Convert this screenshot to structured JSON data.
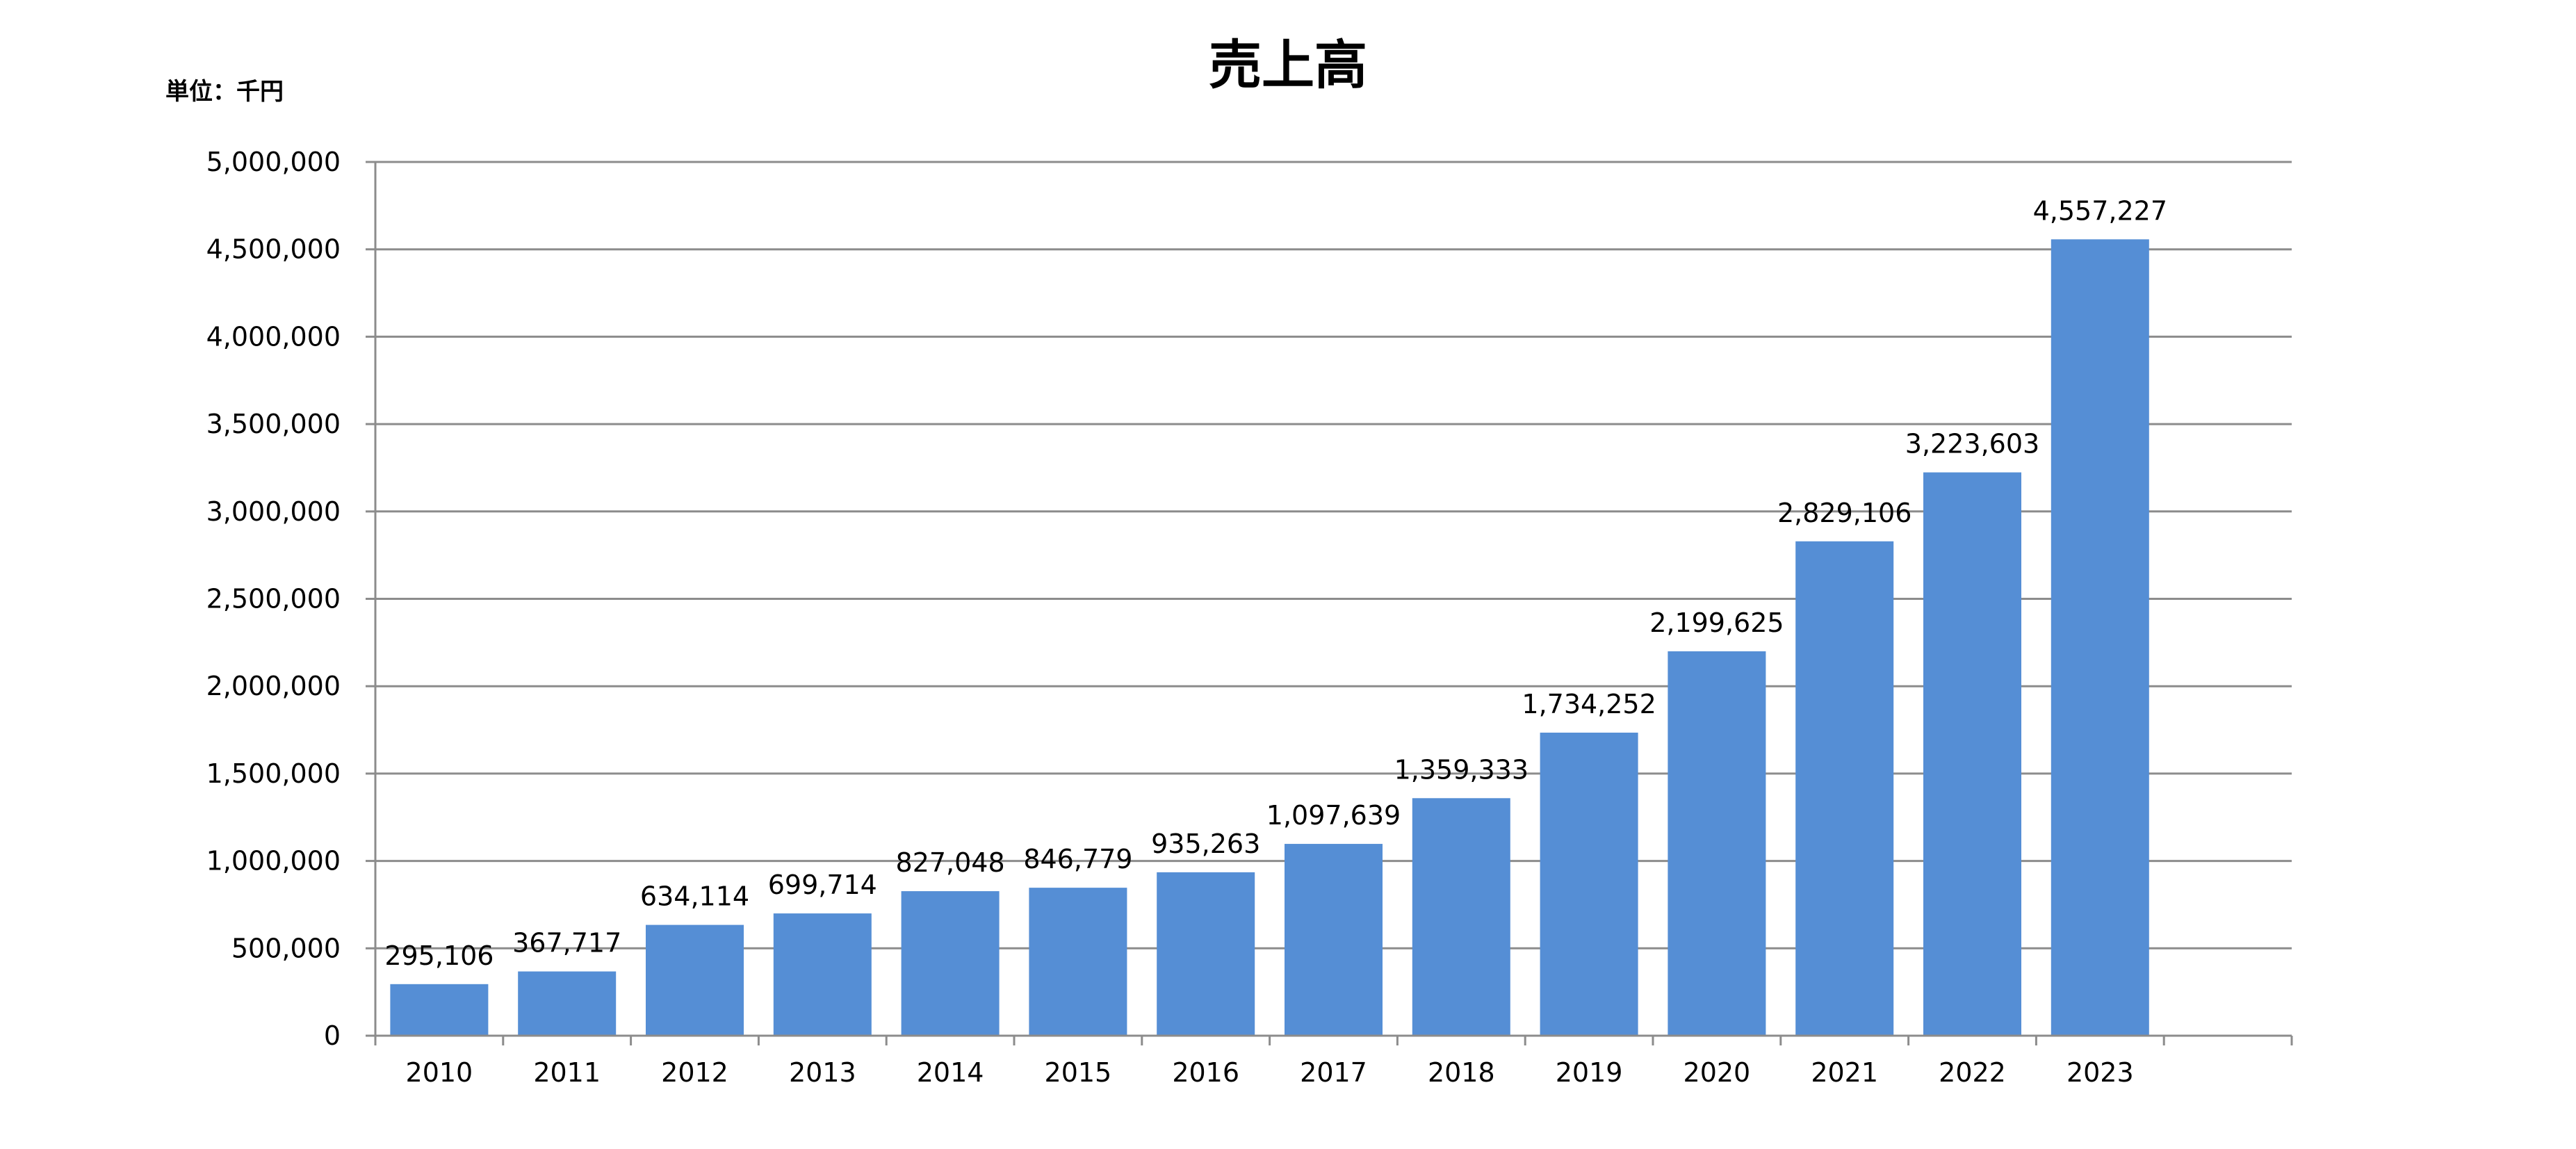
{
  "chart_data": {
    "type": "bar",
    "title": "売上高",
    "unit_label": "単位：千円",
    "categories": [
      "2010",
      "2011",
      "2012",
      "2013",
      "2014",
      "2015",
      "2016",
      "2017",
      "2018",
      "2019",
      "2020",
      "2021",
      "2022",
      "2023"
    ],
    "values": [
      295106,
      367717,
      634114,
      699714,
      827048,
      846779,
      935263,
      1097639,
      1359333,
      1734252,
      2199625,
      2829106,
      3223603,
      4557227
    ],
    "value_labels": [
      "295,106",
      "367,717",
      "634,114",
      "699,714",
      "827,048",
      "846,779",
      "935,263",
      "1,097,639",
      "1,359,333",
      "1,734,252",
      "2,199,625",
      "2,829,106",
      "3,223,603",
      "4,557,227"
    ],
    "y_ticks": [
      0,
      500000,
      1000000,
      1500000,
      2000000,
      2500000,
      3000000,
      3500000,
      4000000,
      4500000,
      5000000
    ],
    "y_tick_labels": [
      "0",
      "500,000",
      "1,000,000",
      "1,500,000",
      "2,000,000",
      "2,500,000",
      "3,000,000",
      "3,500,000",
      "4,000,000",
      "4,500,000",
      "5,000,000"
    ],
    "ylim": [
      0,
      5000000
    ],
    "grid": true,
    "legend": "none",
    "bar_color": "#558ED5",
    "grid_color": "#8C8C8C",
    "xlabel": "",
    "ylabel": ""
  }
}
